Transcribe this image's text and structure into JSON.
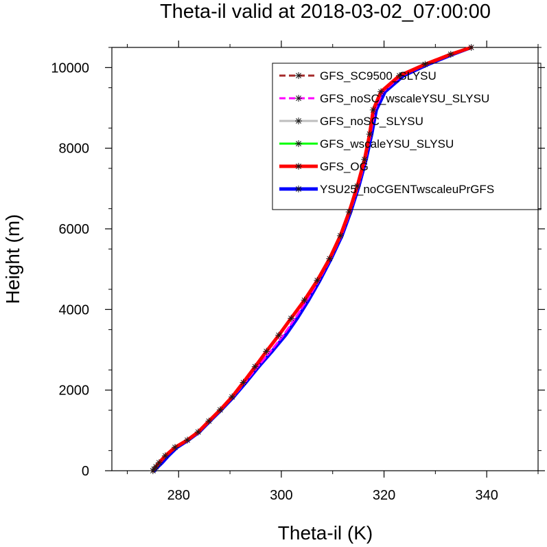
{
  "chart_data": {
    "type": "line",
    "title": "Theta-il valid at 2018-03-02_07:00:00",
    "xlabel": "Theta-il (K)",
    "ylabel": "Height (m)",
    "xlim": [
      267,
      350
    ],
    "ylim": [
      0,
      10500
    ],
    "xticks": [
      280,
      300,
      320,
      340
    ],
    "yticks": [
      0,
      2000,
      4000,
      6000,
      8000,
      10000
    ],
    "grid": false,
    "legend_position": "top-right",
    "series": [
      {
        "name": "GFS_SC9500_SLYSU",
        "color": "#a52a2a",
        "dash": "dashed",
        "width": 3,
        "marker": "asterisk",
        "points": [
          [
            275.0,
            0
          ],
          [
            275.2,
            40
          ],
          [
            275.6,
            100
          ],
          [
            276.2,
            200
          ],
          [
            277.4,
            370
          ],
          [
            279.3,
            580
          ],
          [
            281.7,
            760
          ],
          [
            283.8,
            960
          ],
          [
            285.9,
            1230
          ],
          [
            288.1,
            1510
          ],
          [
            290.4,
            1830
          ],
          [
            292.6,
            2190
          ],
          [
            294.9,
            2580
          ],
          [
            297.1,
            2960
          ],
          [
            299.5,
            3360
          ],
          [
            301.9,
            3780
          ],
          [
            304.5,
            4230
          ],
          [
            307.0,
            4720
          ],
          [
            309.4,
            5260
          ],
          [
            311.5,
            5830
          ],
          [
            313.2,
            6420
          ],
          [
            314.8,
            7060
          ],
          [
            316.2,
            7720
          ],
          [
            317.2,
            8350
          ],
          [
            317.9,
            8950
          ],
          [
            319.4,
            9400
          ],
          [
            323.0,
            9800
          ],
          [
            328.0,
            10080
          ],
          [
            333.0,
            10330
          ],
          [
            337.0,
            10500
          ]
        ]
      },
      {
        "name": "GFS_noSC_wscaleYSU_SLYSU",
        "color": "#ff00ff",
        "dash": "dashed",
        "width": 3,
        "marker": "asterisk",
        "points": [
          [
            275.1,
            0
          ],
          [
            275.3,
            40
          ],
          [
            275.7,
            100
          ],
          [
            276.3,
            200
          ],
          [
            277.5,
            370
          ],
          [
            279.4,
            580
          ],
          [
            281.8,
            760
          ],
          [
            283.9,
            960
          ],
          [
            286.0,
            1230
          ],
          [
            288.2,
            1510
          ],
          [
            290.6,
            1830
          ],
          [
            292.9,
            2190
          ],
          [
            295.4,
            2580
          ],
          [
            297.9,
            2960
          ],
          [
            300.4,
            3360
          ],
          [
            302.7,
            3780
          ],
          [
            305.0,
            4230
          ],
          [
            307.3,
            4720
          ],
          [
            309.6,
            5260
          ],
          [
            311.7,
            5830
          ],
          [
            313.4,
            6420
          ],
          [
            315.0,
            7060
          ],
          [
            316.4,
            7720
          ],
          [
            317.4,
            8350
          ],
          [
            318.2,
            8950
          ],
          [
            319.8,
            9400
          ],
          [
            323.4,
            9800
          ],
          [
            328.4,
            10080
          ],
          [
            333.3,
            10330
          ],
          [
            337.0,
            10500
          ]
        ]
      },
      {
        "name": "GFS_noSC_SLYSU",
        "color": "#bebebe",
        "dash": "solid",
        "width": 3,
        "marker": "asterisk",
        "points": [
          [
            275.0,
            0
          ],
          [
            275.2,
            40
          ],
          [
            275.6,
            100
          ],
          [
            276.2,
            200
          ],
          [
            277.4,
            370
          ],
          [
            279.3,
            580
          ],
          [
            281.7,
            760
          ],
          [
            283.8,
            960
          ],
          [
            285.9,
            1230
          ],
          [
            288.1,
            1510
          ],
          [
            290.4,
            1830
          ],
          [
            292.6,
            2190
          ],
          [
            294.8,
            2580
          ],
          [
            297.0,
            2960
          ],
          [
            299.4,
            3360
          ],
          [
            301.9,
            3780
          ],
          [
            304.5,
            4230
          ],
          [
            307.0,
            4720
          ],
          [
            309.4,
            5260
          ],
          [
            311.5,
            5830
          ],
          [
            313.2,
            6420
          ],
          [
            314.8,
            7060
          ],
          [
            316.2,
            7720
          ],
          [
            317.2,
            8350
          ],
          [
            317.9,
            8950
          ],
          [
            319.4,
            9400
          ],
          [
            323.0,
            9800
          ],
          [
            328.0,
            10080
          ],
          [
            333.0,
            10330
          ],
          [
            337.0,
            10500
          ]
        ]
      },
      {
        "name": "GFS_wscaleYSU_SLYSU",
        "color": "#00ff00",
        "dash": "solid",
        "width": 3,
        "marker": "asterisk",
        "points": [
          [
            275.0,
            0
          ],
          [
            275.2,
            40
          ],
          [
            275.6,
            100
          ],
          [
            276.2,
            200
          ],
          [
            277.4,
            370
          ],
          [
            279.3,
            580
          ],
          [
            281.7,
            760
          ],
          [
            283.8,
            960
          ],
          [
            285.9,
            1230
          ],
          [
            288.1,
            1510
          ],
          [
            290.4,
            1830
          ],
          [
            292.6,
            2190
          ],
          [
            294.8,
            2580
          ],
          [
            297.0,
            2960
          ],
          [
            299.4,
            3360
          ],
          [
            301.9,
            3780
          ],
          [
            304.5,
            4230
          ],
          [
            307.0,
            4720
          ],
          [
            309.4,
            5260
          ],
          [
            311.5,
            5830
          ],
          [
            313.2,
            6420
          ],
          [
            314.8,
            7060
          ],
          [
            316.2,
            7720
          ],
          [
            317.2,
            8350
          ],
          [
            317.9,
            8950
          ],
          [
            319.4,
            9400
          ],
          [
            323.0,
            9800
          ],
          [
            328.0,
            10080
          ],
          [
            333.0,
            10330
          ],
          [
            337.0,
            10500
          ]
        ]
      },
      {
        "name": "GFS_OG",
        "color": "#ff0000",
        "dash": "solid",
        "width": 5,
        "marker": "asterisk",
        "points": [
          [
            275.0,
            0
          ],
          [
            275.2,
            40
          ],
          [
            275.6,
            100
          ],
          [
            276.2,
            200
          ],
          [
            277.4,
            370
          ],
          [
            279.3,
            580
          ],
          [
            281.7,
            760
          ],
          [
            283.8,
            960
          ],
          [
            285.9,
            1230
          ],
          [
            288.1,
            1510
          ],
          [
            290.4,
            1830
          ],
          [
            292.6,
            2190
          ],
          [
            294.9,
            2580
          ],
          [
            297.1,
            2960
          ],
          [
            299.5,
            3360
          ],
          [
            301.9,
            3780
          ],
          [
            304.5,
            4230
          ],
          [
            307.0,
            4720
          ],
          [
            309.4,
            5260
          ],
          [
            311.5,
            5830
          ],
          [
            313.2,
            6420
          ],
          [
            314.8,
            7060
          ],
          [
            316.2,
            7720
          ],
          [
            317.2,
            8350
          ],
          [
            317.9,
            8950
          ],
          [
            319.4,
            9400
          ],
          [
            323.0,
            9800
          ],
          [
            328.0,
            10080
          ],
          [
            333.0,
            10330
          ],
          [
            337.0,
            10500
          ]
        ]
      },
      {
        "name": "YSU25_noCGENTwscaleuPrGFS",
        "color": "#0000ff",
        "dash": "solid",
        "width": 5,
        "marker": "asterisk",
        "points": [
          [
            275.3,
            0
          ],
          [
            275.5,
            40
          ],
          [
            276.0,
            100
          ],
          [
            276.8,
            200
          ],
          [
            278.0,
            370
          ],
          [
            279.7,
            580
          ],
          [
            281.9,
            760
          ],
          [
            284.0,
            960
          ],
          [
            286.1,
            1230
          ],
          [
            288.3,
            1510
          ],
          [
            290.7,
            1830
          ],
          [
            293.1,
            2190
          ],
          [
            295.6,
            2580
          ],
          [
            298.2,
            2960
          ],
          [
            300.8,
            3360
          ],
          [
            303.1,
            3780
          ],
          [
            305.3,
            4230
          ],
          [
            307.5,
            4720
          ],
          [
            309.7,
            5260
          ],
          [
            311.8,
            5830
          ],
          [
            313.5,
            6420
          ],
          [
            315.1,
            7060
          ],
          [
            316.5,
            7720
          ],
          [
            317.6,
            8350
          ],
          [
            318.5,
            8950
          ],
          [
            320.2,
            9400
          ],
          [
            323.8,
            9800
          ],
          [
            328.6,
            10080
          ],
          [
            333.4,
            10330
          ],
          [
            337.0,
            10500
          ]
        ]
      }
    ]
  }
}
